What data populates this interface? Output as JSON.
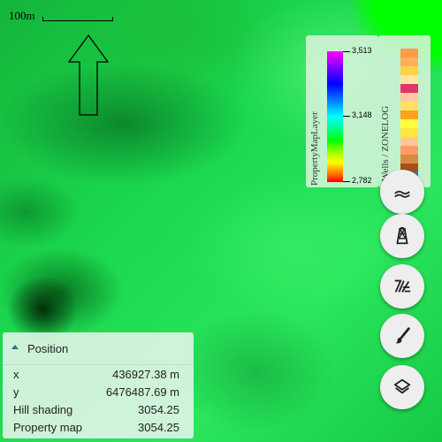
{
  "scalebar": {
    "label": "100m"
  },
  "legends": {
    "property": {
      "title": "PropertyMapLayer",
      "ticks": [
        "3,513",
        "3,148",
        "2,782"
      ]
    },
    "wells": {
      "title": "Wells / ZONELOG",
      "swatches": [
        "#ff9a4a",
        "#ffb05a",
        "#ffd24a",
        "#ffe7a0",
        "#e0356a",
        "#ffc9a0",
        "#ffe066",
        "#ffa020",
        "#ffff40",
        "#ffe640",
        "#ffc890",
        "#ff9a6a",
        "#d88a40",
        "#a0521a",
        "#1e7fb0"
      ]
    }
  },
  "toolbar": {
    "buttons": [
      {
        "name": "hill-shading-button",
        "icon": "hill-shading-icon"
      },
      {
        "name": "wells-button",
        "icon": "oil-derrick-icon"
      },
      {
        "name": "faults-button",
        "icon": "fault-lines-icon"
      },
      {
        "name": "draw-button",
        "icon": "paintbrush-icon"
      },
      {
        "name": "layers-button",
        "icon": "layers-icon"
      }
    ]
  },
  "position": {
    "title": "Position",
    "rows": [
      {
        "label": "x",
        "value": "436927.38 m"
      },
      {
        "label": "y",
        "value": "6476487.69 m"
      },
      {
        "label": "Hill shading",
        "value": "3054.25"
      },
      {
        "label": "Property map",
        "value": "3054.25"
      }
    ]
  }
}
